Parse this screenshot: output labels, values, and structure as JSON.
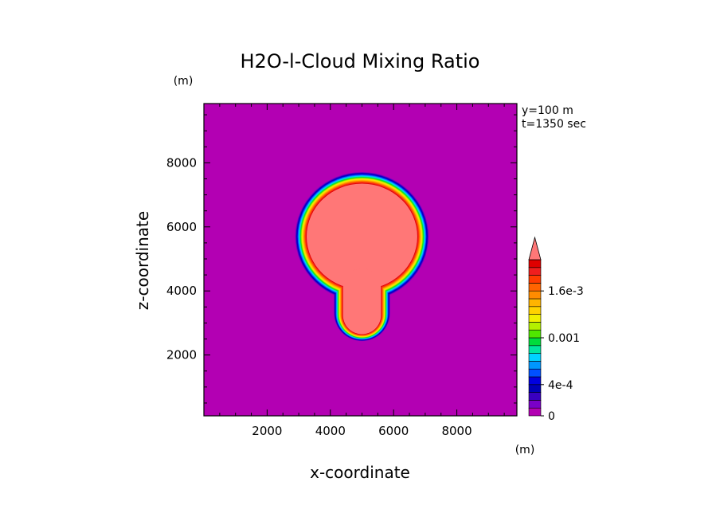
{
  "chart_data": {
    "type": "heatmap",
    "title": "H2O-l-Cloud Mixing Ratio",
    "xlabel": "x-coordinate",
    "ylabel": "z-coordinate",
    "x_unit": "(m)",
    "y_unit": "(m)",
    "xlim": [
      0,
      9900
    ],
    "ylim": [
      100,
      9850
    ],
    "xticks": [
      2000,
      4000,
      6000,
      8000
    ],
    "yticks": [
      2000,
      4000,
      6000,
      8000
    ],
    "info_lines": [
      "y=100 m",
      "t=1350 sec"
    ],
    "colorbar": {
      "levels": [
        0,
        0.0001,
        0.0002,
        0.0003,
        0.0004,
        0.0005,
        0.0006,
        0.0007,
        0.0008,
        0.0009,
        0.001,
        0.0011,
        0.0012,
        0.0013,
        0.0014,
        0.0015,
        0.0016,
        0.0017,
        0.0018,
        0.0019,
        0.002
      ],
      "colors": [
        "#b300b3",
        "#7a00c8",
        "#3a00c0",
        "#0000b8",
        "#0000e0",
        "#0050ff",
        "#0096ff",
        "#00d2ff",
        "#00e6a0",
        "#00dc3c",
        "#50e600",
        "#b4f000",
        "#f0f000",
        "#ffd200",
        "#ffb400",
        "#ff8c00",
        "#ff6400",
        "#ff3c00",
        "#f01e1e",
        "#e00000",
        "#ff7777"
      ],
      "labels": [
        {
          "value": 0,
          "text": "0"
        },
        {
          "value": 0.0004,
          "text": "4e-4"
        },
        {
          "value": 0.001,
          "text": "0.001"
        },
        {
          "value": 0.0016,
          "text": "1.6e-3"
        }
      ],
      "extend": "max"
    },
    "features": {
      "cap": {
        "center_x": 5000,
        "center_z": 5700,
        "semi_x": 1750,
        "semi_z": 1650,
        "peak_value": 0.002
      },
      "stem": {
        "center_x": 5000,
        "z_bottom": 2650,
        "z_top": 4700,
        "half_width": 600,
        "peak_value": 0.002
      }
    }
  }
}
